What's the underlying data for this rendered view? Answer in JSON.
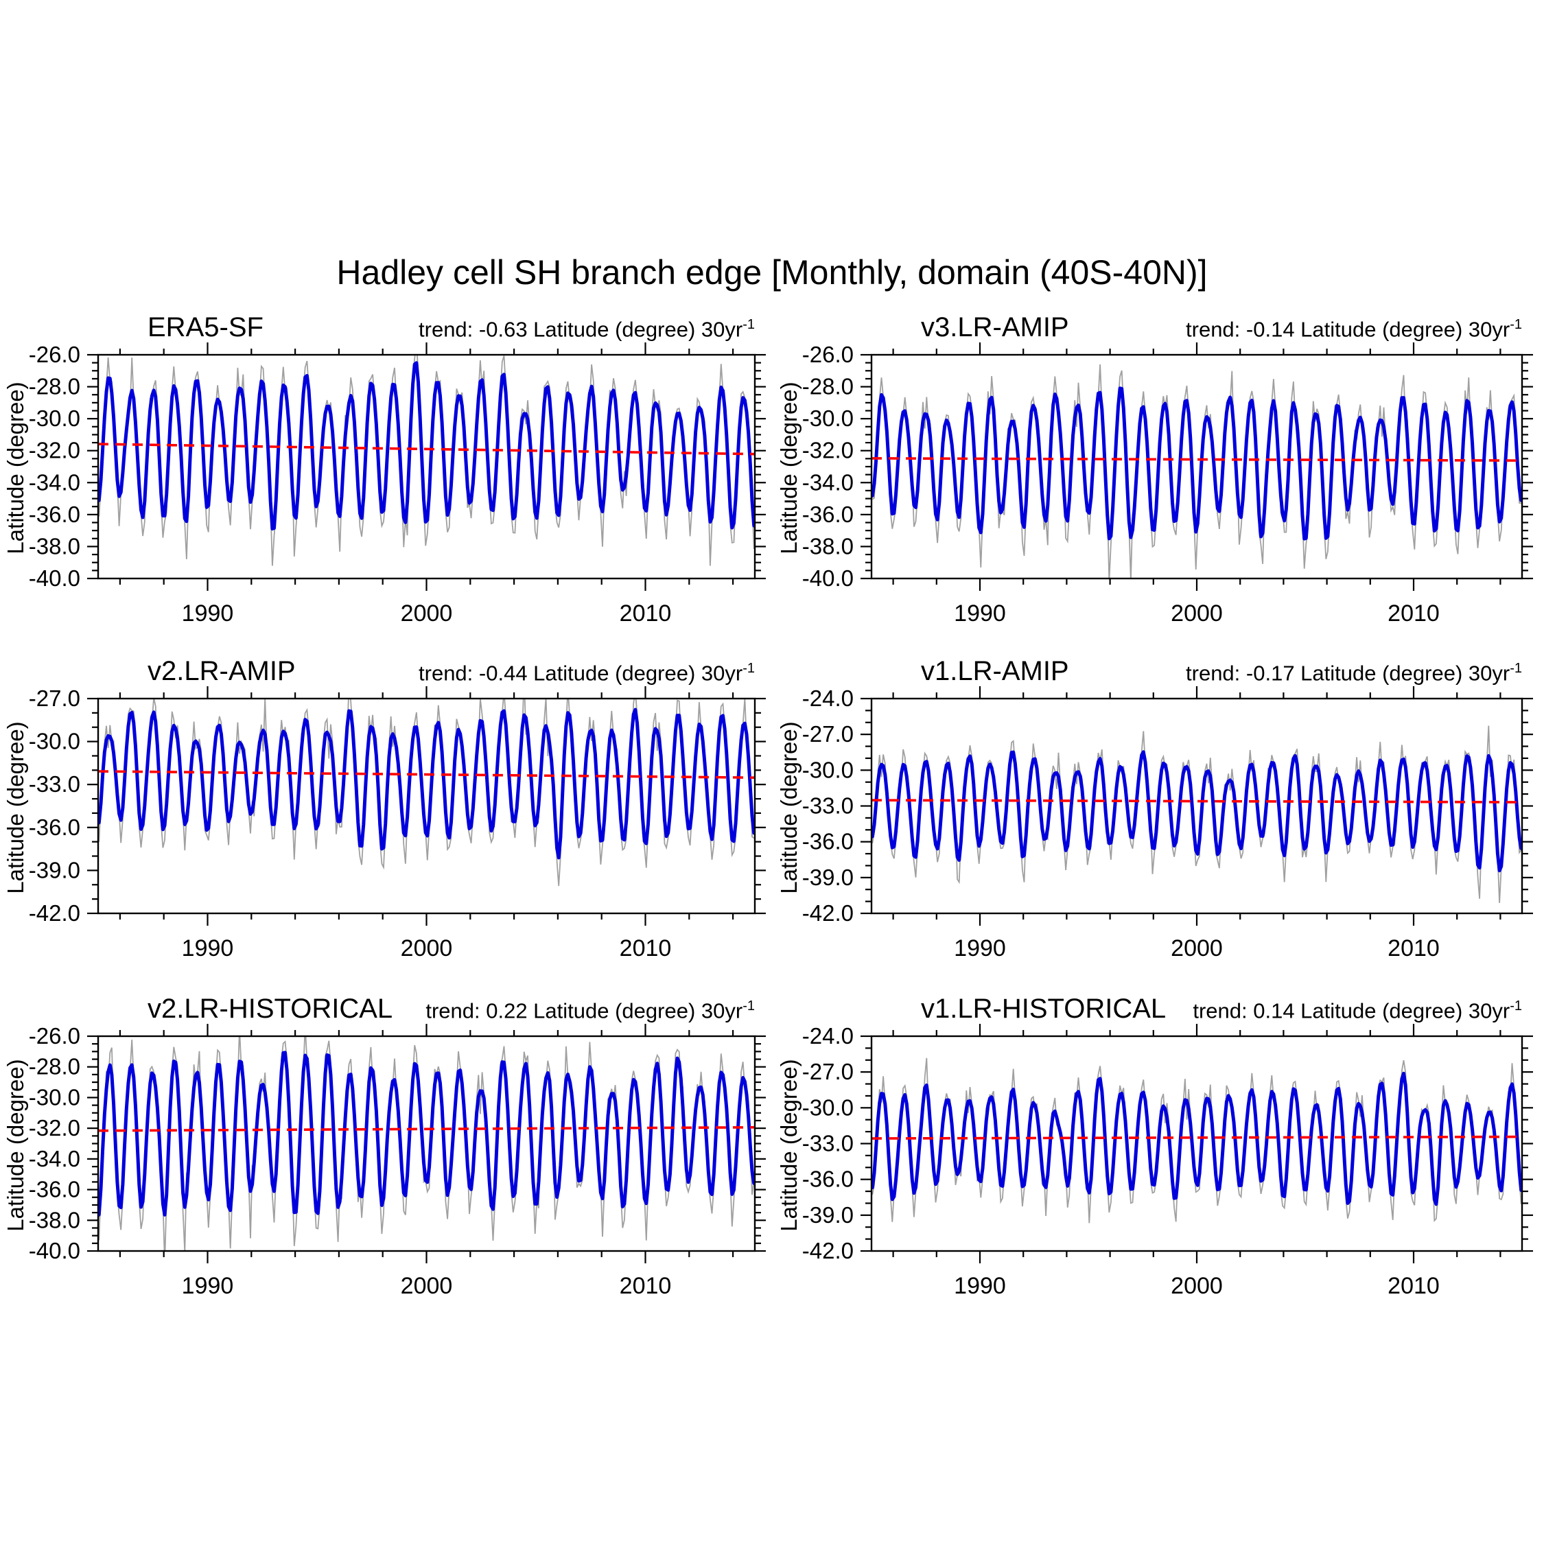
{
  "title": "Hadley cell SH branch edge [Monthly, domain (40S-40N)]",
  "axis": {
    "ylabel": "Latitude (degree)",
    "x_range": [
      1985,
      2015
    ],
    "x_major_ticks": [
      1990,
      2000,
      2010
    ],
    "x_minor_step": 2
  },
  "colors": {
    "raw_line": "#a0a0a0",
    "smoothed_line": "#0000dd",
    "trend_line": "#ff0000",
    "axis": "#000000"
  },
  "chart_data": [
    {
      "type": "line",
      "name": "ERA5-SF",
      "trend_text": "trend: -0.63 Latitude (degree) 30yr",
      "trend_sup": "-1",
      "trend_per_30yr": -0.63,
      "trend_line_mean": -31.9,
      "ylim": [
        -40,
        -26
      ],
      "yticks": [
        -26,
        -28,
        -30,
        -32,
        -34,
        -36,
        -38,
        -40
      ],
      "y_minor_step": 0.5,
      "series_model": {
        "center": -31.7,
        "annual_amplitude": 4.5,
        "second_harmonic": 0.6,
        "year_jitter": 0.09,
        "noise_sd": 0.33,
        "extreme_noise": 2.2,
        "spike_prob": 0.03,
        "wobble": 0.22,
        "seed": 3
      }
    },
    {
      "type": "line",
      "name": "v3.LR-AMIP",
      "trend_text": "trend: -0.14 Latitude (degree) 30yr",
      "trend_sup": "-1",
      "trend_per_30yr": -0.14,
      "trend_line_mean": -32.55,
      "ylim": [
        -40,
        -26
      ],
      "yticks": [
        -26,
        -28,
        -30,
        -32,
        -34,
        -36,
        -38,
        -40
      ],
      "y_minor_step": 0.5,
      "series_model": {
        "center": -32.5,
        "annual_amplitude": 4.1,
        "second_harmonic": 0.55,
        "year_jitter": 0.1,
        "noise_sd": 0.34,
        "extreme_noise": 2.2,
        "spike_prob": 0.035,
        "wobble": 0.24,
        "seed": 7
      }
    },
    {
      "type": "line",
      "name": "v2.LR-AMIP",
      "trend_text": "trend: -0.44 Latitude (degree) 30yr",
      "trend_sup": "-1",
      "trend_per_30yr": -0.44,
      "trend_line_mean": -32.3,
      "ylim": [
        -42,
        -27
      ],
      "yticks": [
        -27,
        -30,
        -33,
        -36,
        -39,
        -42
      ],
      "y_minor_step": 1,
      "series_model": {
        "center": -32.3,
        "annual_amplitude": 4.5,
        "second_harmonic": 0.6,
        "year_jitter": 0.1,
        "noise_sd": 0.36,
        "extreme_noise": 2.2,
        "spike_prob": 0.03,
        "wobble": 0.25,
        "seed": 13
      }
    },
    {
      "type": "line",
      "name": "v1.LR-AMIP",
      "trend_text": "trend: -0.17 Latitude (degree) 30yr",
      "trend_sup": "-1",
      "trend_per_30yr": -0.17,
      "trend_line_mean": -32.6,
      "ylim": [
        -42,
        -24
      ],
      "yticks": [
        -24,
        -27,
        -30,
        -33,
        -36,
        -39,
        -42
      ],
      "y_minor_step": 1,
      "series_model": {
        "center": -32.7,
        "annual_amplitude": 4.4,
        "second_harmonic": 0.55,
        "year_jitter": 0.11,
        "noise_sd": 0.38,
        "extreme_noise": 2.2,
        "spike_prob": 0.035,
        "wobble": 0.25,
        "seed": 21
      }
    },
    {
      "type": "line",
      "name": "v2.LR-HISTORICAL",
      "trend_text": "trend: 0.22 Latitude (degree) 30yr",
      "trend_sup": "-1",
      "trend_per_30yr": 0.22,
      "trend_line_mean": -32.05,
      "ylim": [
        -40,
        -26
      ],
      "yticks": [
        -26,
        -28,
        -30,
        -32,
        -34,
        -36,
        -38,
        -40
      ],
      "y_minor_step": 0.5,
      "series_model": {
        "center": -32.2,
        "annual_amplitude": 4.9,
        "second_harmonic": 0.65,
        "year_jitter": 0.11,
        "noise_sd": 0.36,
        "extreme_noise": 2.3,
        "spike_prob": 0.035,
        "wobble": 0.28,
        "seed": 31
      }
    },
    {
      "type": "line",
      "name": "v1.LR-HISTORICAL",
      "trend_text": "trend: 0.14 Latitude (degree) 30yr",
      "trend_sup": "-1",
      "trend_per_30yr": 0.14,
      "trend_line_mean": -32.5,
      "ylim": [
        -42,
        -24
      ],
      "yticks": [
        -24,
        -27,
        -30,
        -33,
        -36,
        -39,
        -42
      ],
      "y_minor_step": 1,
      "series_model": {
        "center": -32.6,
        "annual_amplitude": 4.7,
        "second_harmonic": 0.6,
        "year_jitter": 0.11,
        "noise_sd": 0.38,
        "extreme_noise": 2.2,
        "spike_prob": 0.035,
        "wobble": 0.26,
        "seed": 41
      }
    }
  ]
}
